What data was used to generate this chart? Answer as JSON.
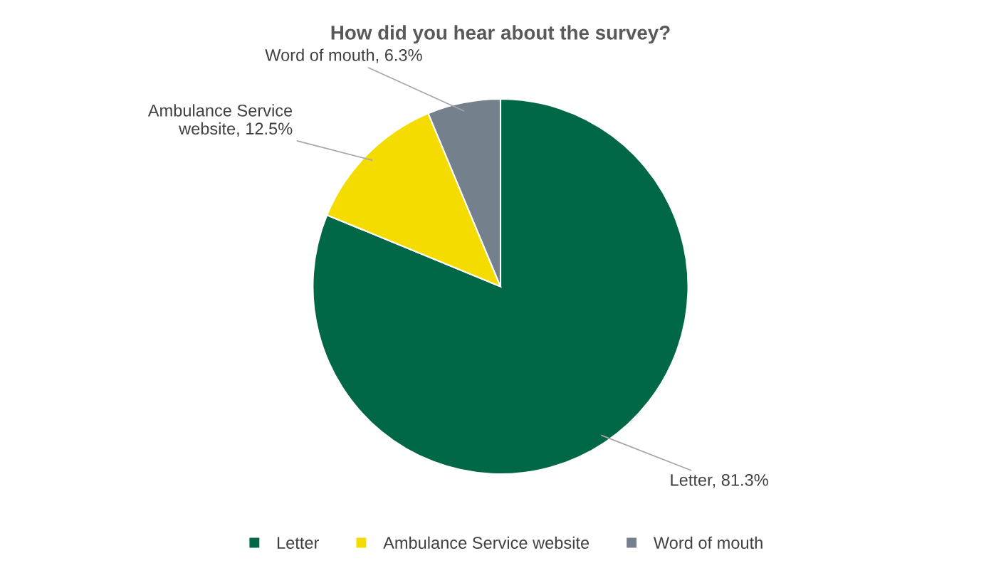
{
  "chart_data": {
    "type": "pie",
    "title": "How did you hear about the survey?",
    "categories": [
      "Letter",
      "Ambulance Service website",
      "Word of mouth"
    ],
    "values": [
      81.3,
      12.5,
      6.3
    ],
    "colors": [
      "#006847",
      "#f5dc00",
      "#74808c"
    ],
    "value_labels": [
      "Letter, 81.3%",
      "Ambulance Service\nwebsite, 12.5%",
      "Word of mouth, 6.3%"
    ],
    "legend": "bottom"
  }
}
